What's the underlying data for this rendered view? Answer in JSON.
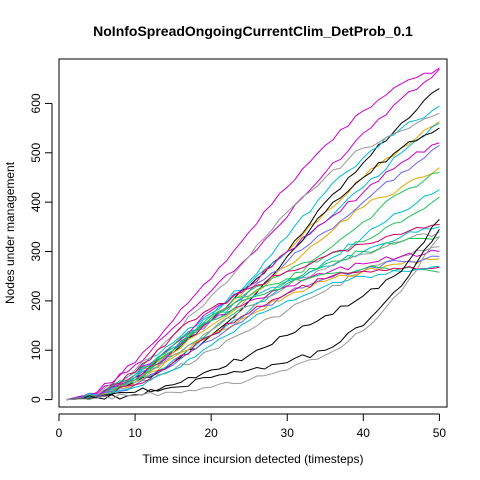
{
  "chart_data": {
    "type": "line",
    "title": "NoInfoSpreadOngoingCurrentClim_DetProb_0.1",
    "xlabel": "Time since incursion detected (timesteps)",
    "ylabel": "Nodes under management",
    "xlim": [
      0,
      51
    ],
    "ylim": [
      -15,
      690
    ],
    "xticks": [
      0,
      10,
      20,
      30,
      40,
      50
    ],
    "yticks": [
      0,
      100,
      200,
      300,
      400,
      500,
      600
    ],
    "grid": false,
    "legend": "none",
    "x_knots": [
      1,
      5,
      10,
      15,
      20,
      25,
      30,
      35,
      40,
      45,
      50
    ],
    "series": [
      {
        "color": "#cc00cc",
        "values": [
          0,
          15,
          75,
          160,
          245,
          340,
          430,
          515,
          585,
          640,
          672
        ]
      },
      {
        "color": "#cc00cc",
        "values": [
          0,
          12,
          70,
          145,
          220,
          290,
          370,
          460,
          540,
          610,
          670
        ]
      },
      {
        "color": "#000000",
        "values": [
          0,
          8,
          45,
          95,
          160,
          230,
          300,
          400,
          480,
          560,
          630
        ]
      },
      {
        "color": "#00bcd4",
        "values": [
          0,
          10,
          55,
          115,
          175,
          240,
          330,
          420,
          490,
          550,
          595
        ]
      },
      {
        "color": "#999999",
        "values": [
          0,
          9,
          60,
          130,
          210,
          290,
          380,
          450,
          510,
          545,
          580
        ]
      },
      {
        "color": "#e6a500",
        "values": [
          0,
          8,
          45,
          100,
          165,
          230,
          300,
          380,
          450,
          510,
          563
        ]
      },
      {
        "color": "#00bcd4",
        "values": [
          0,
          9,
          50,
          110,
          170,
          235,
          300,
          360,
          430,
          500,
          560
        ]
      },
      {
        "color": "#000000",
        "values": [
          0,
          6,
          35,
          75,
          130,
          200,
          290,
          380,
          450,
          510,
          550
        ]
      },
      {
        "color": "#cc00cc",
        "values": [
          0,
          7,
          50,
          110,
          180,
          230,
          300,
          360,
          420,
          480,
          520
        ]
      },
      {
        "color": "#6666ff",
        "values": [
          0,
          8,
          45,
          100,
          160,
          220,
          280,
          340,
          400,
          460,
          515
        ]
      },
      {
        "color": "#e6a500",
        "values": [
          0,
          7,
          40,
          95,
          150,
          210,
          270,
          330,
          390,
          430,
          470
        ]
      },
      {
        "color": "#22c25a",
        "values": [
          0,
          7,
          40,
          90,
          140,
          190,
          240,
          300,
          360,
          420,
          460
        ]
      },
      {
        "color": "#00bcd4",
        "values": [
          0,
          6,
          35,
          80,
          130,
          180,
          230,
          280,
          330,
          380,
          425
        ]
      },
      {
        "color": "#22c25a",
        "values": [
          0,
          6,
          40,
          100,
          170,
          220,
          260,
          290,
          320,
          360,
          410
        ]
      },
      {
        "color": "#cc0066",
        "values": [
          0,
          7,
          55,
          130,
          185,
          225,
          260,
          290,
          315,
          335,
          355
        ]
      },
      {
        "color": "#00bcd4",
        "values": [
          0,
          6,
          45,
          105,
          160,
          205,
          240,
          270,
          300,
          330,
          350
        ]
      },
      {
        "color": "#999999",
        "values": [
          0,
          5,
          40,
          90,
          140,
          190,
          230,
          265,
          295,
          320,
          340
        ]
      },
      {
        "color": "#22c25a",
        "values": [
          0,
          6,
          50,
          110,
          165,
          210,
          245,
          275,
          300,
          320,
          330
        ]
      },
      {
        "color": "#999999",
        "values": [
          0,
          5,
          30,
          60,
          100,
          140,
          180,
          220,
          260,
          290,
          310
        ]
      },
      {
        "color": "#cc00cc",
        "values": [
          0,
          6,
          40,
          100,
          160,
          200,
          230,
          255,
          275,
          290,
          300
        ]
      },
      {
        "color": "#e6a500",
        "values": [
          0,
          5,
          35,
          85,
          130,
          170,
          210,
          240,
          260,
          275,
          285
        ]
      },
      {
        "color": "#6666ff",
        "values": [
          0,
          5,
          30,
          70,
          120,
          170,
          215,
          245,
          265,
          280,
          290
        ]
      },
      {
        "color": "#22c25a",
        "values": [
          0,
          5,
          40,
          100,
          160,
          205,
          235,
          255,
          265,
          265,
          258
        ]
      },
      {
        "color": "#cc0066",
        "values": [
          0,
          5,
          30,
          75,
          130,
          175,
          215,
          245,
          260,
          265,
          268
        ]
      },
      {
        "color": "#00bcd4",
        "values": [
          0,
          4,
          25,
          60,
          110,
          160,
          200,
          230,
          250,
          260,
          270
        ]
      },
      {
        "color": "#000000",
        "values": [
          0,
          4,
          15,
          30,
          60,
          90,
          130,
          170,
          210,
          260,
          365
        ]
      },
      {
        "color": "#000000",
        "values": [
          0,
          3,
          10,
          25,
          45,
          60,
          75,
          100,
          150,
          230,
          345
        ]
      },
      {
        "color": "#999999",
        "values": [
          0,
          3,
          8,
          15,
          25,
          40,
          60,
          90,
          140,
          220,
          330
        ]
      }
    ]
  }
}
